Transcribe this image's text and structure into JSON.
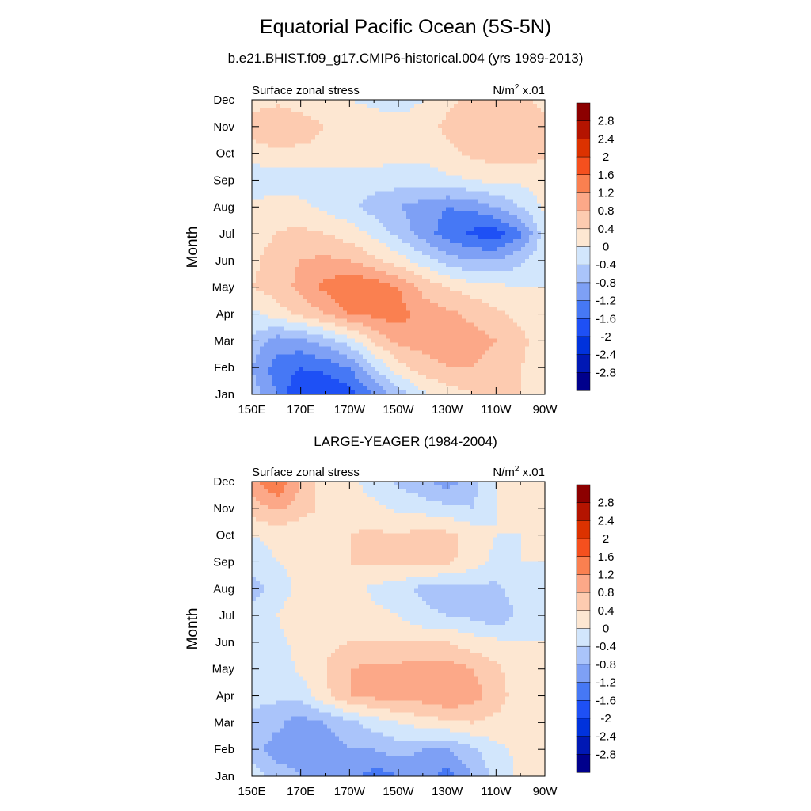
{
  "main_title": "Equatorial Pacific Ocean (5S-5N)",
  "colors": {
    "levels": [
      -2.8,
      -2.4,
      -2.0,
      -1.6,
      -1.2,
      -0.8,
      -0.4,
      0,
      0.4,
      0.8,
      1.2,
      1.6,
      2.0,
      2.4,
      2.8
    ],
    "fills": [
      "#00008c",
      "#0018b4",
      "#0032dc",
      "#1e50f5",
      "#4678f5",
      "#7ea0f5",
      "#aac4fa",
      "#d2e6fc",
      "#fde7d2",
      "#fdcbb0",
      "#fca888",
      "#fa8050",
      "#f5501e",
      "#dc3200",
      "#b41400",
      "#8c0000"
    ],
    "label_levels": [
      "2.8",
      "2.4",
      "2",
      "1.6",
      "1.2",
      "0.8",
      "0.4",
      "0",
      "-0.4",
      "-0.8",
      "-1.2",
      "-1.6",
      "-2",
      "-2.4",
      "-2.8"
    ]
  },
  "chart_data": [
    {
      "type": "heatmap",
      "title": "b.e21.BHIST.f09_g17.CMIP6-historical.004 (yrs 1989-2013)",
      "left_label": "Surface zonal stress",
      "right_label_base": "N/m",
      "right_label_exp": "2",
      "right_label_scale": " x.01",
      "ylabel": "Month",
      "x_tick_labels": [
        "150E",
        "170E",
        "170W",
        "150W",
        "130W",
        "110W",
        "90W"
      ],
      "x_ticks": [
        150,
        170,
        190,
        210,
        230,
        250,
        270
      ],
      "y_tick_labels": [
        "Jan",
        "Feb",
        "Mar",
        "Apr",
        "May",
        "Jun",
        "Jul",
        "Aug",
        "Sep",
        "Oct",
        "Nov",
        "Dec"
      ],
      "xlim": [
        150,
        270
      ],
      "ylim": [
        1,
        12
      ],
      "x": [
        150,
        160,
        170,
        180,
        190,
        200,
        210,
        220,
        230,
        240,
        250,
        260,
        270
      ],
      "y": [
        1,
        2,
        3,
        4,
        5,
        6,
        7,
        8,
        9,
        10,
        11,
        12
      ],
      "z": [
        [
          -0.6,
          -1.2,
          -2.0,
          -2.0,
          -1.8,
          -1.2,
          -0.6,
          -0.1,
          0.2,
          0.4,
          0.4,
          0.4,
          0.1
        ],
        [
          -0.8,
          -1.4,
          -1.6,
          -1.5,
          -1.2,
          -0.4,
          0.2,
          0.6,
          0.8,
          0.8,
          0.6,
          0.4,
          0.2
        ],
        [
          -0.5,
          -1.0,
          -0.9,
          -0.6,
          -0.2,
          0.5,
          0.9,
          1.0,
          1.0,
          1.0,
          0.8,
          0.5,
          0.2
        ],
        [
          -0.1,
          0.2,
          0.5,
          0.8,
          1.2,
          1.3,
          1.4,
          1.0,
          0.9,
          0.7,
          0.5,
          0.3,
          0.1
        ],
        [
          0.4,
          0.6,
          0.9,
          1.3,
          1.6,
          1.5,
          1.2,
          0.7,
          0.4,
          0.2,
          0.1,
          0.0,
          0.0
        ],
        [
          0.3,
          0.6,
          0.8,
          0.9,
          0.8,
          0.5,
          0.2,
          -0.2,
          -0.6,
          -0.8,
          -0.8,
          -0.5,
          -0.1
        ],
        [
          0.2,
          0.4,
          0.5,
          0.4,
          0.2,
          -0.1,
          -0.5,
          -1.0,
          -1.4,
          -1.7,
          -1.8,
          -1.3,
          -0.2
        ],
        [
          0.1,
          0.2,
          0.1,
          -0.1,
          -0.3,
          -0.6,
          -0.8,
          -1.0,
          -1.2,
          -1.1,
          -0.8,
          -0.4,
          0.1
        ],
        [
          -0.3,
          -0.2,
          -0.2,
          -0.2,
          -0.2,
          -0.2,
          -0.2,
          -0.2,
          -0.1,
          0.0,
          0.1,
          0.1,
          0.1
        ],
        [
          0.2,
          0.3,
          0.3,
          0.3,
          0.2,
          0.2,
          0.1,
          0.1,
          0.3,
          0.5,
          0.6,
          0.6,
          0.5
        ],
        [
          0.6,
          0.8,
          0.6,
          0.4,
          0.3,
          0.2,
          0.2,
          0.2,
          0.5,
          0.7,
          0.8,
          0.7,
          0.5
        ],
        [
          0.2,
          0.3,
          0.2,
          0.1,
          0.0,
          -0.1,
          -0.2,
          0.0,
          0.3,
          0.5,
          0.6,
          0.5,
          0.3
        ]
      ]
    },
    {
      "type": "heatmap",
      "title": "LARGE-YEAGER (1984-2004)",
      "left_label": "Surface zonal stress",
      "right_label_base": "N/m",
      "right_label_exp": "2",
      "right_label_scale": " x.01",
      "ylabel": "Month",
      "x_tick_labels": [
        "150E",
        "170E",
        "170W",
        "150W",
        "130W",
        "110W",
        "90W"
      ],
      "x_ticks": [
        150,
        170,
        190,
        210,
        230,
        250,
        270
      ],
      "y_tick_labels": [
        "Jan",
        "Feb",
        "Mar",
        "Apr",
        "May",
        "Jun",
        "Jul",
        "Aug",
        "Sep",
        "Oct",
        "Nov",
        "Dec"
      ],
      "xlim": [
        150,
        270
      ],
      "ylim": [
        1,
        12
      ],
      "x": [
        150,
        160,
        170,
        180,
        190,
        200,
        210,
        220,
        230,
        240,
        250,
        260,
        270
      ],
      "y": [
        1,
        2,
        3,
        4,
        5,
        6,
        7,
        8,
        9,
        10,
        11,
        12
      ],
      "z": [
        [
          -0.2,
          -0.6,
          -0.8,
          -0.9,
          -1.0,
          -1.4,
          -1.2,
          -1.0,
          -1.4,
          -0.8,
          -0.3,
          0.1,
          0.1
        ],
        [
          -0.6,
          -1.0,
          -1.0,
          -1.0,
          -0.8,
          -0.8,
          -0.6,
          -0.8,
          -0.8,
          -0.5,
          -0.1,
          0.1,
          0.1
        ],
        [
          -0.5,
          -0.7,
          -1.0,
          -0.8,
          -0.5,
          -0.2,
          0.0,
          0.2,
          0.3,
          0.4,
          0.3,
          0.2,
          0.1
        ],
        [
          -0.3,
          -0.3,
          -0.3,
          0.3,
          0.8,
          0.9,
          1.0,
          1.0,
          1.2,
          1.0,
          0.6,
          0.2,
          0.1
        ],
        [
          -0.4,
          -0.3,
          0.1,
          0.4,
          0.8,
          0.9,
          0.9,
          1.0,
          1.0,
          0.8,
          0.5,
          0.1,
          0.0
        ],
        [
          -0.2,
          -0.1,
          0.1,
          0.3,
          0.4,
          0.4,
          0.4,
          0.4,
          0.4,
          0.2,
          0.1,
          0.0,
          0.0
        ],
        [
          -0.2,
          0.0,
          0.2,
          0.2,
          0.2,
          0.1,
          0.0,
          -0.3,
          -0.4,
          -0.5,
          -0.7,
          -0.3,
          0.0
        ],
        [
          -0.6,
          -0.2,
          0.1,
          0.2,
          0.2,
          -0.1,
          -0.2,
          -0.5,
          -0.6,
          -0.5,
          -0.5,
          -0.2,
          0.0
        ],
        [
          -0.2,
          0.0,
          0.1,
          0.2,
          0.4,
          0.5,
          0.5,
          0.6,
          0.5,
          0.2,
          -0.1,
          0.0,
          0.0
        ],
        [
          0.0,
          0.1,
          0.1,
          0.2,
          0.4,
          0.5,
          0.4,
          0.6,
          0.5,
          0.3,
          0.0,
          0.0,
          0.1
        ],
        [
          0.6,
          0.9,
          0.6,
          0.3,
          0.2,
          0.1,
          -0.1,
          -0.2,
          -0.3,
          -0.4,
          0.0,
          0.0,
          0.1
        ],
        [
          1.0,
          1.6,
          0.8,
          0.2,
          0.1,
          -0.2,
          -0.5,
          -0.7,
          -1.0,
          -0.6,
          0.0,
          0.0,
          0.0
        ]
      ]
    }
  ]
}
